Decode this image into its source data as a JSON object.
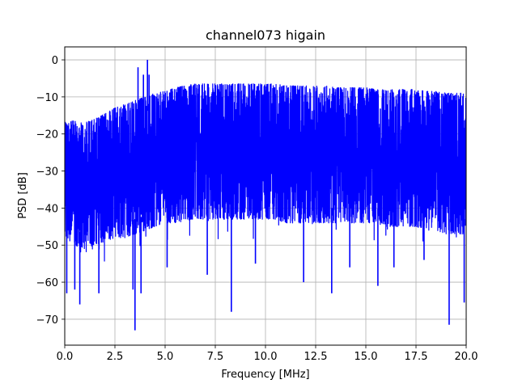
{
  "chart_data": {
    "type": "line",
    "title": "channel073 higain",
    "xlabel": "Frequency [MHz]",
    "ylabel": "PSD [dB]",
    "xlim": [
      0,
      20
    ],
    "ylim": [
      -77,
      3.5
    ],
    "xticks": [
      0,
      2.5,
      5,
      7.5,
      10,
      12.5,
      15,
      17.5,
      20
    ],
    "xtick_labels": [
      "0.0",
      "2.5",
      "5.0",
      "7.5",
      "10.0",
      "12.5",
      "15.0",
      "17.5",
      "20.0"
    ],
    "yticks": [
      0,
      -10,
      -20,
      -30,
      -40,
      -50,
      -60,
      -70
    ],
    "ytick_labels": [
      "0",
      "−10",
      "−20",
      "−30",
      "−40",
      "−50",
      "−60",
      "−70"
    ],
    "grid": true,
    "series": [
      {
        "color": "#0000ff",
        "upper_envelope": {
          "x": [
            0,
            0.5,
            1,
            1.5,
            2,
            2.5,
            3,
            3.5,
            4,
            4.5,
            5,
            5.5,
            6,
            6.5,
            7,
            7.5,
            8,
            8.5,
            9,
            9.5,
            10,
            10.5,
            11,
            11.5,
            12,
            12.5,
            13,
            13.5,
            14,
            14.5,
            15,
            15.5,
            16,
            16.5,
            17,
            17.5,
            18,
            18.5,
            19,
            19.5,
            20
          ],
          "y": [
            -16.5,
            -16.5,
            -17,
            -16,
            -14.5,
            -13,
            -12,
            -11,
            -10,
            -9,
            -8.5,
            -7.5,
            -7,
            -6.5,
            -6.5,
            -6.5,
            -6.5,
            -6.5,
            -6.5,
            -6.5,
            -6.5,
            -6.5,
            -7,
            -7,
            -7,
            -7,
            -7,
            -7.5,
            -7.5,
            -7.5,
            -7.5,
            -8,
            -8,
            -8,
            -8,
            -8,
            -8.5,
            -8.5,
            -9,
            -9,
            -9
          ]
        },
        "lower_envelope": {
          "x": [
            0,
            0.5,
            1,
            1.5,
            2,
            2.5,
            3,
            3.5,
            4,
            4.5,
            5,
            5.5,
            6,
            6.5,
            7,
            7.5,
            8,
            8.5,
            9,
            9.5,
            10,
            10.5,
            11,
            11.5,
            12,
            12.5,
            13,
            13.5,
            14,
            14.5,
            15,
            15.5,
            16,
            16.5,
            17,
            17.5,
            18,
            18.5,
            19,
            19.5,
            20
          ],
          "y": [
            -48,
            -50,
            -51,
            -50,
            -49,
            -48,
            -48,
            -47,
            -46,
            -45,
            -44,
            -44,
            -43,
            -43,
            -43,
            -43,
            -43,
            -43,
            -43,
            -43,
            -43,
            -43,
            -44,
            -44,
            -44,
            -44,
            -44,
            -44,
            -44,
            -44,
            -44,
            -44,
            -45,
            -45,
            -45,
            -45,
            -46,
            -46,
            -47,
            -47,
            -47
          ]
        },
        "spikes_up": [
          {
            "x": 3.65,
            "y": -2
          },
          {
            "x": 3.92,
            "y": -4
          },
          {
            "x": 4.12,
            "y": 0
          },
          {
            "x": 4.2,
            "y": -4
          }
        ],
        "spikes_down": [
          {
            "x": 0.1,
            "y": -63
          },
          {
            "x": 0.5,
            "y": -62
          },
          {
            "x": 0.75,
            "y": -66
          },
          {
            "x": 1.7,
            "y": -63
          },
          {
            "x": 3.4,
            "y": -62
          },
          {
            "x": 3.5,
            "y": -73
          },
          {
            "x": 3.8,
            "y": -63
          },
          {
            "x": 5.1,
            "y": -56
          },
          {
            "x": 7.1,
            "y": -58
          },
          {
            "x": 8.3,
            "y": -68
          },
          {
            "x": 9.5,
            "y": -55
          },
          {
            "x": 11.9,
            "y": -60
          },
          {
            "x": 13.3,
            "y": -63
          },
          {
            "x": 14.2,
            "y": -56
          },
          {
            "x": 15.6,
            "y": -61
          },
          {
            "x": 16.4,
            "y": -56
          },
          {
            "x": 17.9,
            "y": -54
          },
          {
            "x": 19.15,
            "y": -71.5
          },
          {
            "x": 19.9,
            "y": -65.5
          }
        ]
      }
    ]
  }
}
